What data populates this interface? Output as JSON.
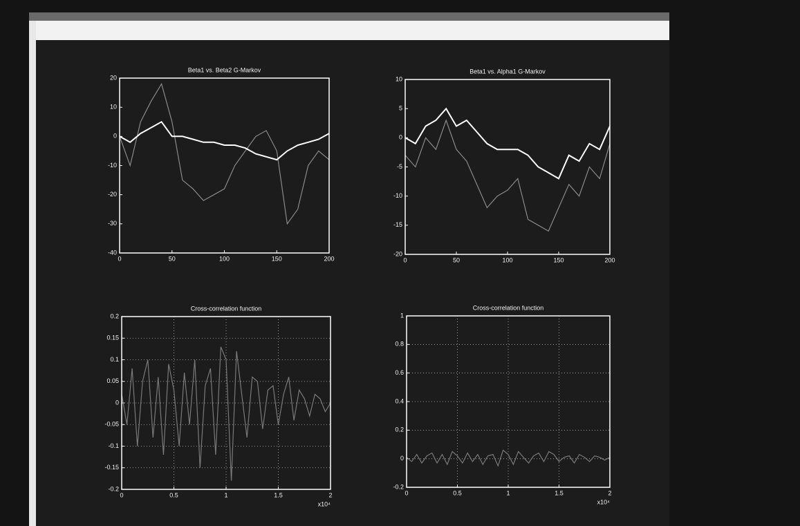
{
  "chart_data": [
    {
      "type": "line",
      "title": "Beta1 vs. Beta2 G-Markov",
      "x": [
        0,
        10,
        20,
        30,
        40,
        50,
        60,
        70,
        80,
        90,
        100,
        110,
        120,
        130,
        140,
        150,
        160,
        170,
        180,
        190,
        200
      ],
      "series": [
        {
          "color": "#8a8a8a",
          "values": [
            0,
            -10,
            5,
            12,
            18,
            5,
            -15,
            -18,
            -22,
            -20,
            -18,
            -10,
            -5,
            0,
            2,
            -5,
            -30,
            -25,
            -10,
            -5,
            -8
          ]
        },
        {
          "color": "#ffffff",
          "values": [
            0,
            -2,
            1,
            3,
            5,
            0,
            0,
            -1,
            -2,
            -2,
            -3,
            -3,
            -4,
            -6,
            -7,
            -8,
            -5,
            -3,
            -2,
            -1,
            1
          ]
        }
      ],
      "xlim": [
        0,
        200
      ],
      "xticks": [
        0,
        50,
        100,
        150,
        200
      ],
      "ylim": [
        -40,
        20
      ],
      "yticks": [
        -40,
        -30,
        -20,
        -10,
        0,
        10,
        20
      ],
      "grid": false
    },
    {
      "type": "line",
      "title": "Beta1 vs. Alpha1 G-Markov",
      "x": [
        0,
        10,
        20,
        30,
        40,
        50,
        60,
        70,
        80,
        90,
        100,
        110,
        120,
        130,
        140,
        150,
        160,
        170,
        180,
        190,
        200
      ],
      "series": [
        {
          "color": "#8a8a8a",
          "values": [
            -3,
            -5,
            0,
            -2,
            3,
            -2,
            -4,
            -8,
            -12,
            -10,
            -9,
            -7,
            -14,
            -15,
            -16,
            -12,
            -8,
            -10,
            -5,
            -7,
            -1
          ]
        },
        {
          "color": "#ffffff",
          "values": [
            0,
            -1,
            2,
            3,
            5,
            2,
            3,
            1,
            -1,
            -2,
            -2,
            -2,
            -3,
            -5,
            -6,
            -7,
            -3,
            -4,
            -1,
            -2,
            2
          ]
        }
      ],
      "xlim": [
        0,
        200
      ],
      "xticks": [
        0,
        50,
        100,
        150,
        200
      ],
      "ylim": [
        -20,
        10
      ],
      "yticks": [
        -20,
        -15,
        -10,
        -5,
        0,
        5,
        10
      ],
      "grid": false
    },
    {
      "type": "line",
      "title": "Cross-correlation function",
      "x_multiplier": "x10⁴",
      "x": [
        0,
        0.05,
        0.1,
        0.15,
        0.2,
        0.25,
        0.3,
        0.35,
        0.4,
        0.45,
        0.5,
        0.55,
        0.6,
        0.65,
        0.7,
        0.75,
        0.8,
        0.85,
        0.9,
        0.95,
        1,
        1.05,
        1.1,
        1.15,
        1.2,
        1.25,
        1.3,
        1.35,
        1.4,
        1.45,
        1.5,
        1.55,
        1.6,
        1.65,
        1.7,
        1.75,
        1.8,
        1.85,
        1.9,
        1.95,
        2
      ],
      "series": [
        {
          "color": "#7a7a7a",
          "values": [
            0.02,
            -0.05,
            0.08,
            -0.1,
            0.05,
            0.1,
            -0.08,
            0.06,
            -0.12,
            0.09,
            0.03,
            -0.1,
            0.07,
            -0.05,
            0.1,
            -0.15,
            0.04,
            0.08,
            -0.12,
            0.13,
            0.1,
            -0.18,
            0.12,
            0.02,
            -0.08,
            0.06,
            0.05,
            -0.06,
            0.03,
            0.04,
            -0.05,
            0.02,
            0.06,
            -0.04,
            0.03,
            0.01,
            -0.03,
            0.02,
            0.01,
            -0.02,
            0
          ]
        }
      ],
      "xlim": [
        0,
        2
      ],
      "xticks": [
        0,
        0.5,
        1,
        1.5,
        2
      ],
      "ylim": [
        -0.2,
        0.2
      ],
      "yticks": [
        -0.2,
        -0.15,
        -0.1,
        -0.05,
        0,
        0.05,
        0.1,
        0.15,
        0.2
      ],
      "grid": true
    },
    {
      "type": "line",
      "title": "Cross-correlation function",
      "x_multiplier": "x10⁴",
      "x": [
        0,
        0.05,
        0.1,
        0.15,
        0.2,
        0.25,
        0.3,
        0.35,
        0.4,
        0.45,
        0.5,
        0.55,
        0.6,
        0.65,
        0.7,
        0.75,
        0.8,
        0.85,
        0.9,
        0.95,
        1,
        1.05,
        1.1,
        1.15,
        1.2,
        1.25,
        1.3,
        1.35,
        1.4,
        1.45,
        1.5,
        1.55,
        1.6,
        1.65,
        1.7,
        1.75,
        1.8,
        1.85,
        1.9,
        1.95,
        2
      ],
      "series": [
        {
          "color": "#7a7a7a",
          "values": [
            0.01,
            -0.02,
            0.03,
            -0.03,
            0.02,
            0.04,
            -0.03,
            0.03,
            -0.04,
            0.05,
            0.02,
            -0.03,
            0.04,
            -0.02,
            0.03,
            -0.04,
            0.02,
            0.03,
            -0.05,
            0.06,
            0.03,
            -0.04,
            0.05,
            0.01,
            -0.03,
            0.02,
            0.04,
            -0.02,
            0.05,
            0.03,
            -0.02,
            0.01,
            0.02,
            -0.03,
            0.03,
            0.01,
            -0.02,
            0.02,
            0.01,
            -0.01,
            0.01
          ]
        }
      ],
      "xlim": [
        0,
        2
      ],
      "xticks": [
        0,
        0.5,
        1,
        1.5,
        2
      ],
      "ylim": [
        -0.2,
        1
      ],
      "yticks": [
        -0.2,
        0,
        0.2,
        0.4,
        0.6,
        0.8,
        1
      ],
      "grid": true
    }
  ]
}
